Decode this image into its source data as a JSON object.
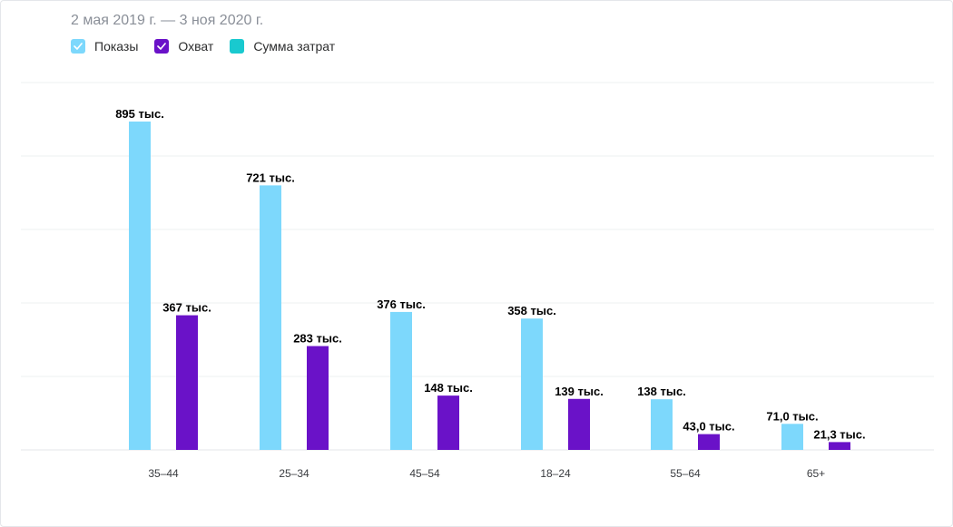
{
  "header": {
    "date_range": "2 мая 2019 г. — 3 ноя 2020 г."
  },
  "legend": [
    {
      "label": "Показы",
      "color": "#7dd8fc",
      "checked": true
    },
    {
      "label": "Охват",
      "color": "#6a12c8",
      "checked": true
    },
    {
      "label": "Сумма затрат",
      "color": "#19c9cf",
      "checked": false
    }
  ],
  "chart_data": {
    "type": "bar",
    "categories": [
      "35–44",
      "25–34",
      "45–54",
      "18–24",
      "55–64",
      "65+"
    ],
    "series": [
      {
        "name": "Показы",
        "color": "#7dd8fc",
        "values": [
          895000,
          721000,
          376000,
          358000,
          138000,
          71000
        ],
        "labels": [
          "895 тыс.",
          "721 тыс.",
          "376 тыс.",
          "358 тыс.",
          "138 тыс.",
          "71,0 тыс."
        ]
      },
      {
        "name": "Охват",
        "color": "#6a12c8",
        "values": [
          367000,
          283000,
          148000,
          139000,
          43000,
          21300
        ],
        "labels": [
          "367 тыс.",
          "283 тыс.",
          "148 тыс.",
          "139 тыс.",
          "43,0 тыс.",
          "21,3 тыс."
        ]
      }
    ],
    "grid": true,
    "legend_position": "top-left"
  }
}
